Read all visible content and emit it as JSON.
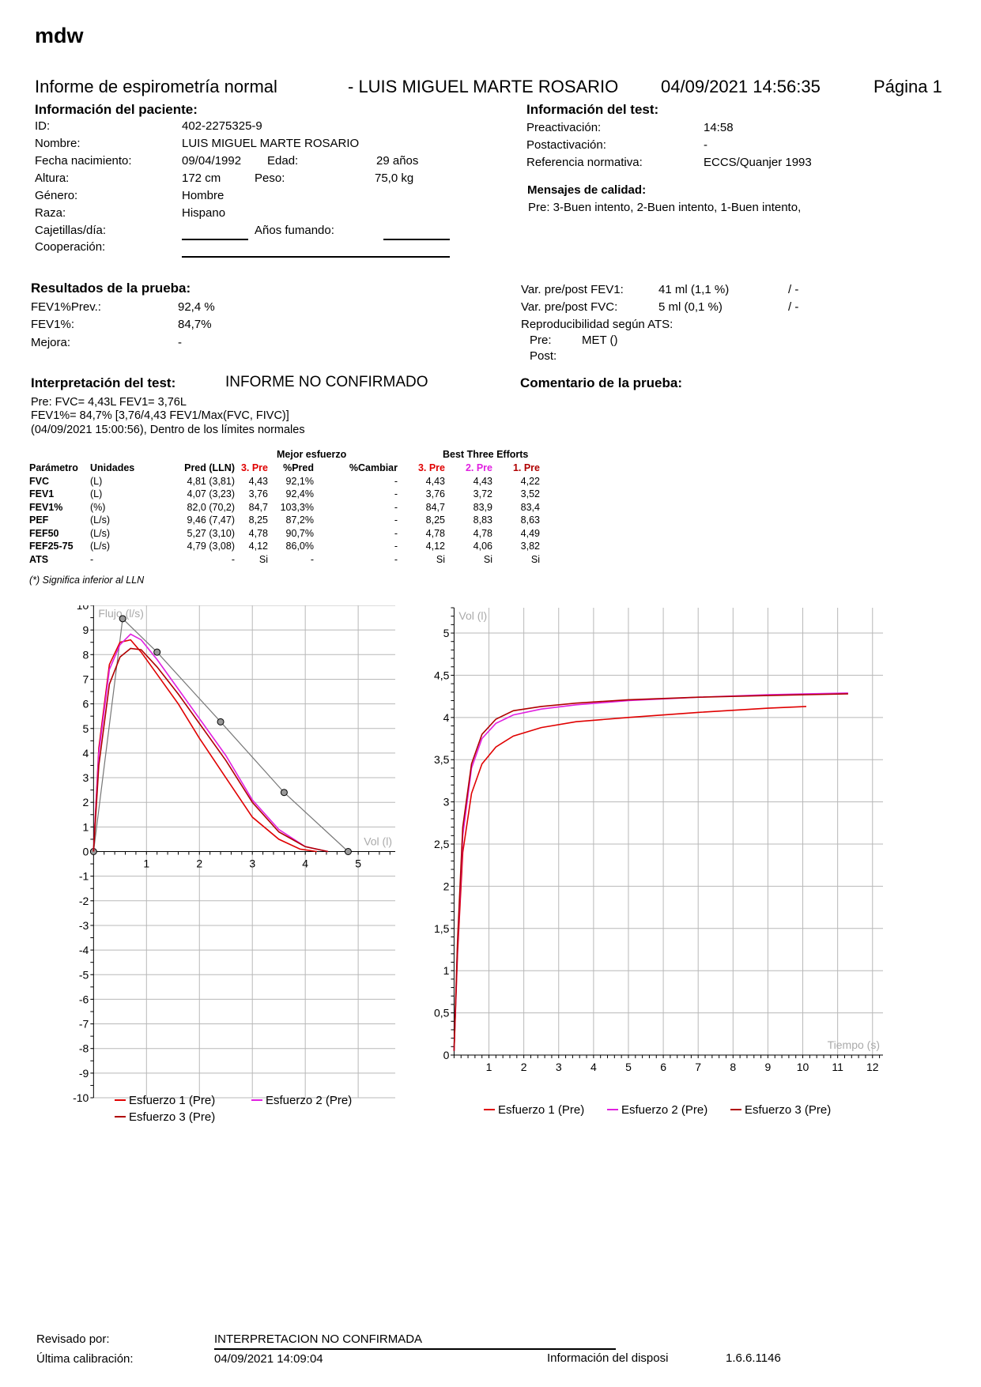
{
  "brand": "mdw",
  "header": {
    "report_title": "Informe de espirometría normal",
    "patient_line": "- LUIS MIGUEL  MARTE ROSARIO",
    "datetime": "04/09/2021 14:56:35",
    "page": "Página 1"
  },
  "patient": {
    "title": "Información del paciente:",
    "id_label": "ID:",
    "id": "402-2275325-9",
    "name_label": "Nombre:",
    "name": "LUIS MIGUEL  MARTE ROSARIO",
    "dob_label": "Fecha nacimiento:",
    "dob": "09/04/1992",
    "age_label": "Edad:",
    "age": "29 años",
    "height_label": "Altura:",
    "height": "172 cm",
    "weight_label": "Peso:",
    "weight": "75,0 kg",
    "gender_label": "Género:",
    "gender": "Hombre",
    "race_label": "Raza:",
    "race": "Hispano",
    "cig_label": "Cajetillas/día:",
    "years_smoking_label": "Años fumando:",
    "coop_label": "Cooperación:"
  },
  "test_info": {
    "title": "Información del test:",
    "pre_label": "Preactivación:",
    "pre": "14:58",
    "post_label": "Postactivación:",
    "post": "-",
    "ref_label": "Referencia normativa:",
    "ref": "ECCS/Quanjer 1993",
    "quality_title": "Mensajes de calidad:",
    "quality_text": "Pre: 3-Buen intento, 2-Buen intento, 1-Buen intento,"
  },
  "results": {
    "title": "Resultados de la prueba:",
    "fev1prev_label": "FEV1%Prev.:",
    "fev1prev": "92,4 %",
    "fev1pct_label": "FEV1%:",
    "fev1pct": "84,7%",
    "mejora_label": "Mejora:",
    "mejora": "-",
    "var_fev1_label": "Var. pre/post FEV1:",
    "var_fev1": "41 ml (1,1 %)",
    "var_fev1_post": "/ -",
    "var_fvc_label": "Var. pre/post FVC:",
    "var_fvc": "5 ml (0,1 %)",
    "var_fvc_post": "/ -",
    "repro_label": "Reproducibilidad según ATS:",
    "repro_pre_label": "Pre:",
    "repro_pre": "MET ()",
    "repro_post_label": "Post:"
  },
  "interpretation": {
    "title": "Interpretación del test:",
    "status": "INFORME NO CONFIRMADO",
    "comment_title": "Comentario de la prueba:",
    "line1": "Pre: FVC= 4,43L FEV1= 3,76L",
    "line2": "FEV1%= 84,7% [3,76/4,43 FEV1/Max(FVC, FIVC)]",
    "line3": "(04/09/2021 15:00:56), Dentro de los límites normales"
  },
  "table": {
    "group_best": "Mejor esfuerzo",
    "group_three": "Best Three Efforts",
    "headers": [
      "Parámetro",
      "Unidades",
      "Pred (LLN)",
      "3. Pre",
      "%Pred",
      "%Cambiar",
      "3. Pre",
      "2. Pre",
      "1. Pre"
    ],
    "rows": [
      [
        "FVC",
        "(L)",
        "4,81 (3,81)",
        "4,43",
        "92,1%",
        "-",
        "4,43",
        "4,43",
        "4,22"
      ],
      [
        "FEV1",
        "(L)",
        "4,07 (3,23)",
        "3,76",
        "92,4%",
        "-",
        "3,76",
        "3,72",
        "3,52"
      ],
      [
        "FEV1%",
        "(%)",
        "82,0 (70,2)",
        "84,7",
        "103,3%",
        "-",
        "84,7",
        "83,9",
        "83,4"
      ],
      [
        "PEF",
        "(L/s)",
        "9,46 (7,47)",
        "8,25",
        "87,2%",
        "-",
        "8,25",
        "8,83",
        "8,63"
      ],
      [
        "FEF50",
        "(L/s)",
        "5,27 (3,10)",
        "4,78",
        "90,7%",
        "-",
        "4,78",
        "4,78",
        "4,49"
      ],
      [
        "FEF25-75",
        "(L/s)",
        "4,79 (3,08)",
        "4,12",
        "86,0%",
        "-",
        "4,12",
        "4,06",
        "3,82"
      ],
      [
        "ATS",
        "-",
        "-",
        "Si",
        "-",
        "-",
        "Si",
        "Si",
        "Si"
      ]
    ],
    "footnote": "(*) Significa inferior al LLN"
  },
  "chart_data": [
    {
      "type": "line",
      "title": "",
      "ylabel": "Flujo (l/s)",
      "xlabel": "Vol (l)",
      "xlim": [
        -0.05,
        5.7
      ],
      "ylim": [
        -10,
        10
      ],
      "yticks": [
        "10",
        "9",
        "8",
        "7",
        "6",
        "5",
        "4",
        "3",
        "2",
        "1",
        "0",
        "-1",
        "-2",
        "-3",
        "-4",
        "-5",
        "-6",
        "-7",
        "-8",
        "-9",
        "-10"
      ],
      "xticks": [
        "1",
        "2",
        "3",
        "4",
        "5"
      ],
      "grid": true,
      "legend": [
        "Esfuerzo 1 (Pre)",
        "Esfuerzo 2 (Pre)",
        "Esfuerzo 3 (Pre)"
      ],
      "predicted": {
        "x": [
          0,
          0.55,
          1.2,
          2.4,
          3.6,
          4.81
        ],
        "y": [
          0,
          9.46,
          8.1,
          5.27,
          2.4,
          0
        ]
      },
      "series": [
        {
          "name": "Esfuerzo 1 (Pre)",
          "color": "#e00000",
          "x": [
            0,
            0.1,
            0.3,
            0.5,
            0.7,
            0.9,
            1.2,
            1.6,
            2.0,
            2.5,
            3.0,
            3.5,
            3.9,
            4.22
          ],
          "y": [
            0,
            4.2,
            7.6,
            8.5,
            8.6,
            8.1,
            7.2,
            6.0,
            4.6,
            3.0,
            1.4,
            0.5,
            0.1,
            0
          ]
        },
        {
          "name": "Esfuerzo 2 (Pre)",
          "color": "#e020e0",
          "x": [
            0,
            0.1,
            0.3,
            0.5,
            0.7,
            0.9,
            1.2,
            1.6,
            2.0,
            2.5,
            3.0,
            3.5,
            4.0,
            4.43
          ],
          "y": [
            0,
            4.0,
            7.4,
            8.4,
            8.83,
            8.6,
            7.8,
            6.6,
            5.4,
            3.9,
            2.1,
            0.9,
            0.2,
            0
          ]
        },
        {
          "name": "Esfuerzo 3 (Pre)",
          "color": "#b00000",
          "x": [
            0,
            0.1,
            0.3,
            0.5,
            0.7,
            0.9,
            1.2,
            1.6,
            2.0,
            2.5,
            3.0,
            3.5,
            4.0,
            4.43
          ],
          "y": [
            0,
            3.5,
            6.8,
            7.9,
            8.25,
            8.2,
            7.5,
            6.4,
            5.2,
            3.7,
            2.0,
            0.8,
            0.2,
            0
          ]
        }
      ]
    },
    {
      "type": "line",
      "title": "",
      "ylabel": "Vol (l)",
      "xlabel": "Tiempo (s)",
      "xlim": [
        -0.1,
        12.3
      ],
      "ylim": [
        0,
        5.3
      ],
      "yticks": [
        "0",
        "0,5",
        "1",
        "1,5",
        "2",
        "2,5",
        "3",
        "3,5",
        "4",
        "4,5",
        "5"
      ],
      "xticks": [
        "1",
        "2",
        "3",
        "4",
        "5",
        "6",
        "7",
        "8",
        "9",
        "10",
        "11",
        "12"
      ],
      "grid": true,
      "legend": [
        "Esfuerzo 1 (Pre)",
        "Esfuerzo 2 (Pre)",
        "Esfuerzo 3 (Pre)"
      ],
      "series": [
        {
          "name": "Esfuerzo 1 (Pre)",
          "color": "#e00000",
          "x": [
            0,
            0.1,
            0.25,
            0.5,
            0.8,
            1.2,
            1.7,
            2.5,
            3.5,
            5,
            7,
            9,
            10.1
          ],
          "y": [
            0.05,
            1.2,
            2.4,
            3.1,
            3.45,
            3.65,
            3.78,
            3.88,
            3.95,
            4.0,
            4.06,
            4.11,
            4.13
          ]
        },
        {
          "name": "Esfuerzo 2 (Pre)",
          "color": "#e020e0",
          "x": [
            0,
            0.1,
            0.25,
            0.5,
            0.8,
            1.2,
            1.7,
            2.5,
            3.5,
            5,
            7,
            9,
            11.3
          ],
          "y": [
            0.05,
            1.3,
            2.6,
            3.4,
            3.75,
            3.93,
            4.03,
            4.1,
            4.15,
            4.2,
            4.24,
            4.27,
            4.29
          ]
        },
        {
          "name": "Esfuerzo 3 (Pre)",
          "color": "#b00000",
          "x": [
            0,
            0.1,
            0.25,
            0.5,
            0.8,
            1.2,
            1.7,
            2.5,
            3.5,
            5,
            7,
            9,
            11.3
          ],
          "y": [
            0.05,
            1.35,
            2.7,
            3.45,
            3.8,
            3.98,
            4.08,
            4.13,
            4.17,
            4.21,
            4.24,
            4.26,
            4.28
          ]
        }
      ]
    }
  ],
  "footer": {
    "reviewed_label": "Revisado por:",
    "reviewed": "INTERPRETACION NO CONFIRMADA",
    "calib_label": "Última calibración:",
    "calib": "04/09/2021 14:09:04",
    "device_label": "Información del disposi",
    "version": "1.6.6.1146"
  }
}
